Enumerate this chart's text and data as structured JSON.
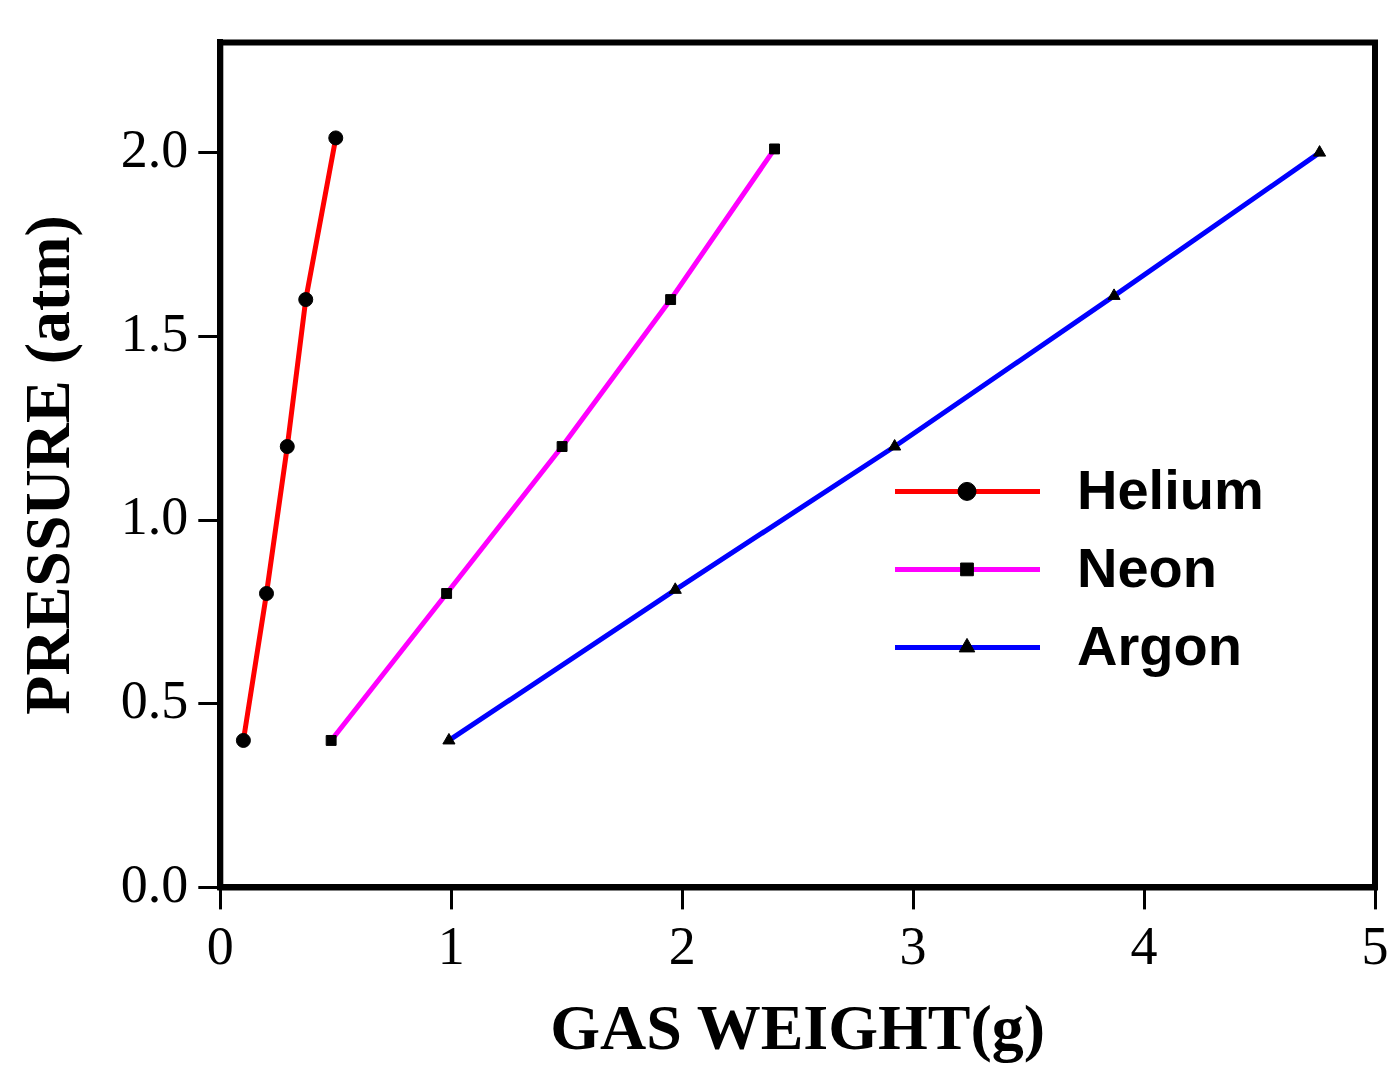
{
  "chart_data": {
    "type": "line",
    "xlabel": "GAS WEIGHT(g)",
    "ylabel": "PRESSURE (atm)",
    "xlim": [
      0,
      5
    ],
    "xticks": [
      0,
      1,
      2,
      3,
      4,
      5
    ],
    "ylim": [
      0,
      2.3
    ],
    "yticks": [
      {
        "value": 0,
        "label": "0.0"
      },
      0.5,
      {
        "value": 1,
        "label": "1.0"
      },
      1.5,
      {
        "value": 2,
        "label": "2.0"
      }
    ],
    "grid": false,
    "legend": "bottom right",
    "line_style": "solid",
    "series": [
      {
        "name": "Helium",
        "color": "#ff0000",
        "marker": "circle",
        "x": [
          0.1,
          0.2,
          0.29,
          0.37,
          0.5
        ],
        "values": [
          0.4,
          0.8,
          1.2,
          1.6,
          2.04
        ]
      },
      {
        "name": "Neon",
        "color": "#ff00ff",
        "marker": "square",
        "x": [
          0.48,
          0.98,
          1.48,
          1.95,
          2.4
        ],
        "values": [
          0.4,
          0.8,
          1.2,
          1.6,
          2.01
        ]
      },
      {
        "name": "Argon",
        "color": "#0000ff",
        "marker": "triangle",
        "x": [
          0.99,
          1.97,
          2.92,
          3.87,
          4.76
        ],
        "values": [
          0.4,
          0.81,
          1.2,
          1.61,
          2.0
        ]
      }
    ]
  }
}
